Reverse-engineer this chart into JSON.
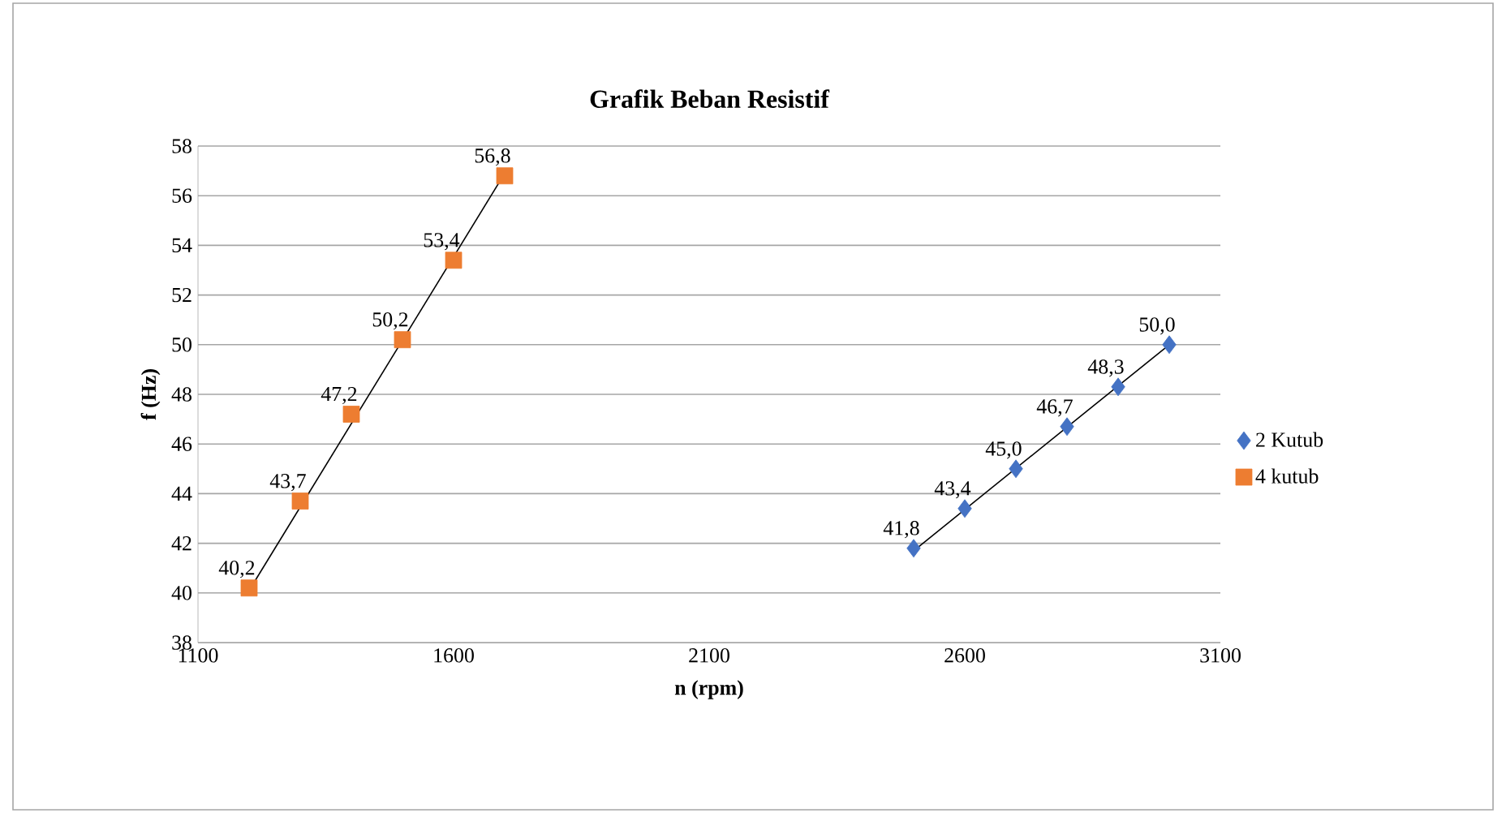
{
  "chart_data": {
    "type": "scatter",
    "title": "Grafik Beban Resistif",
    "xlabel": "n (rpm)",
    "ylabel": "f (Hz)",
    "xlim": [
      1100,
      3100
    ],
    "xticks": [
      1100,
      1600,
      2100,
      2600,
      3100
    ],
    "ylim": [
      38,
      58
    ],
    "yticks": [
      38,
      40,
      42,
      44,
      46,
      48,
      50,
      52,
      54,
      56,
      58
    ],
    "grid": "y",
    "legend": "right",
    "series": [
      {
        "name": "2 Kutub",
        "color": "#4472c4",
        "marker": "diamond",
        "x": [
          2500,
          2600,
          2700,
          2800,
          2900,
          3000
        ],
        "values": [
          41.8,
          43.4,
          45.0,
          46.7,
          48.3,
          50.0
        ],
        "value_labels": [
          "41,8",
          "43,4",
          "45,0",
          "46,7",
          "48,3",
          "50,0"
        ]
      },
      {
        "name": "4 kutub",
        "color": "#ed7d31",
        "marker": "square",
        "x": [
          1200,
          1300,
          1400,
          1500,
          1600,
          1700
        ],
        "values": [
          40.2,
          43.7,
          47.2,
          50.2,
          53.4,
          56.8
        ],
        "value_labels": [
          "40,2",
          "43,7",
          "47,2",
          "50,2",
          "53,4",
          "56,8"
        ]
      },
      {
        "type": "line",
        "color": "#000000",
        "marker": "none",
        "x": [
          2500,
          3000
        ],
        "values": [
          41.7,
          50.0
        ]
      },
      {
        "type": "line",
        "color": "#000000",
        "marker": "none",
        "x": [
          1200,
          1700
        ],
        "values": [
          40.1,
          56.9
        ]
      }
    ]
  }
}
